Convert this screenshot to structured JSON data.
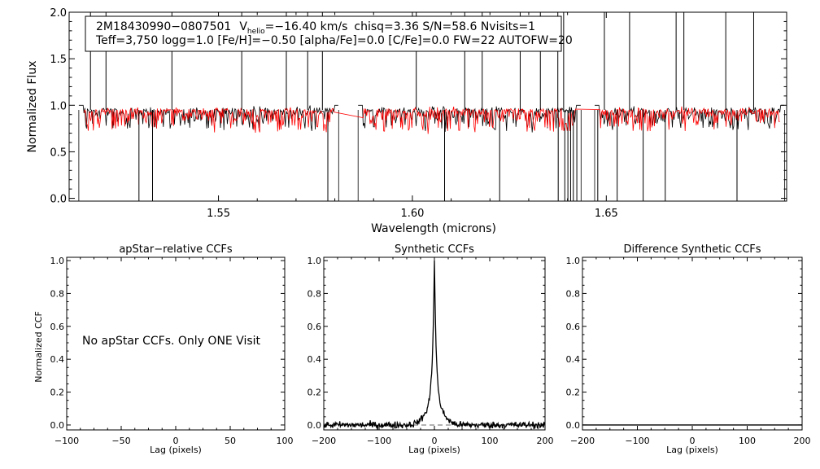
{
  "chart_data": [
    {
      "id": "spectrum",
      "type": "line",
      "title": "",
      "xlabel": "Wavelength (microns)",
      "ylabel": "Normalized Flux",
      "xlim": [
        1.5115,
        1.6965
      ],
      "ylim": [
        -0.03,
        2.0
      ],
      "xticks": [
        1.55,
        1.6,
        1.65
      ],
      "xtick_labels": [
        "1.55",
        "1.60",
        "1.65"
      ],
      "yticks": [
        0.0,
        0.5,
        1.0,
        1.5,
        2.0
      ],
      "ytick_labels": [
        "0.0",
        "0.5",
        "1.0",
        "1.5",
        "2.0"
      ],
      "annotation": {
        "line1": {
          "id": "2M18430990−0807501",
          "v_label": "V",
          "v_sub": "helio",
          "v_value": "=−16.40 km/s",
          "rest": "chisq=3.36  S/N=58.6  Nvisits=1"
        },
        "line2": "Teff=3,750 logg=1.0 [Fe/H]=−0.50 [alpha/Fe]=0.0 [C/Fe]=0.0 FW=22 AUTOFW=20"
      },
      "detector_chips": [
        [
          1.514,
          1.581
        ],
        [
          1.586,
          1.6435
        ],
        [
          1.647,
          1.696
        ]
      ],
      "continuum_level": 0.95,
      "bad_pixel_spikes_up": [
        1.517,
        1.521,
        1.538,
        1.556,
        1.5675,
        1.573,
        1.5768,
        1.601,
        1.6135,
        1.618,
        1.6278,
        1.633,
        1.6375,
        1.639,
        1.6495,
        1.656,
        1.668,
        1.67,
        1.6808,
        1.688
      ],
      "bad_pixel_spikes_down": [
        1.5295,
        1.533,
        1.5782,
        1.6083,
        1.6225,
        1.6376,
        1.6393,
        1.6401,
        1.6408,
        1.6415,
        1.6424,
        1.6478,
        1.6528,
        1.6595,
        1.6652,
        1.6837
      ],
      "series": [
        {
          "name": "observed spectrum",
          "color": "#000000"
        },
        {
          "name": "best-fit synthetic",
          "color": "#ff0000"
        }
      ]
    },
    {
      "id": "apstar-ccf",
      "type": "line",
      "title": "apStar−relative CCFs",
      "xlabel": "Lag (pixels)",
      "ylabel": "Normalized CCF",
      "xlim": [
        -100,
        100
      ],
      "ylim": [
        -0.03,
        1.02
      ],
      "xticks": [
        -100,
        -50,
        0,
        50,
        100
      ],
      "xtick_labels": [
        "−100",
        "−50",
        "0",
        "50",
        "100"
      ],
      "yticks": [
        0.0,
        0.2,
        0.4,
        0.6,
        0.8,
        1.0
      ],
      "ytick_labels": [
        "0.0",
        "0.2",
        "0.4",
        "0.6",
        "0.8",
        "1.0"
      ],
      "message": "No apStar CCFs.  Only ONE Visit",
      "series": []
    },
    {
      "id": "synthetic-ccf",
      "type": "line",
      "title": "Synthetic CCFs",
      "xlabel": "Lag (pixels)",
      "ylabel": "",
      "xlim": [
        -200,
        200
      ],
      "ylim": [
        -0.03,
        1.02
      ],
      "xticks": [
        -200,
        -100,
        0,
        100,
        200
      ],
      "xtick_labels": [
        "−200",
        "−100",
        "0",
        "100",
        "200"
      ],
      "yticks": [
        0.0,
        0.2,
        0.4,
        0.6,
        0.8,
        1.0
      ],
      "ytick_labels": [
        "0.0",
        "0.2",
        "0.4",
        "0.6",
        "0.8",
        "1.0"
      ],
      "peak": {
        "lag": 0,
        "value": 1.0,
        "width": 3.5,
        "wing_amplitude": 0.11,
        "wing_width": 16
      },
      "baseline": 0.0,
      "noise_amplitude": 0.02,
      "series": [
        {
          "name": "CCF",
          "color": "#000000",
          "style": "solid"
        },
        {
          "name": "zero level",
          "color": "#000000",
          "style": "dashed",
          "y": 0.0
        }
      ]
    },
    {
      "id": "difference-ccf",
      "type": "line",
      "title": "Difference Synthetic CCFs",
      "xlabel": "Lag (pixels)",
      "ylabel": "",
      "xlim": [
        -200,
        200
      ],
      "ylim": [
        -0.03,
        1.02
      ],
      "xticks": [
        -200,
        -100,
        0,
        100,
        200
      ],
      "xtick_labels": [
        "−200",
        "−100",
        "0",
        "100",
        "200"
      ],
      "yticks": [
        0.0,
        0.2,
        0.4,
        0.6,
        0.8,
        1.0
      ],
      "ytick_labels": [
        "0.0",
        "0.2",
        "0.4",
        "0.6",
        "0.8",
        "1.0"
      ],
      "series": [
        {
          "name": "difference CCF",
          "color": "#000000",
          "y": 0.0
        }
      ]
    }
  ]
}
